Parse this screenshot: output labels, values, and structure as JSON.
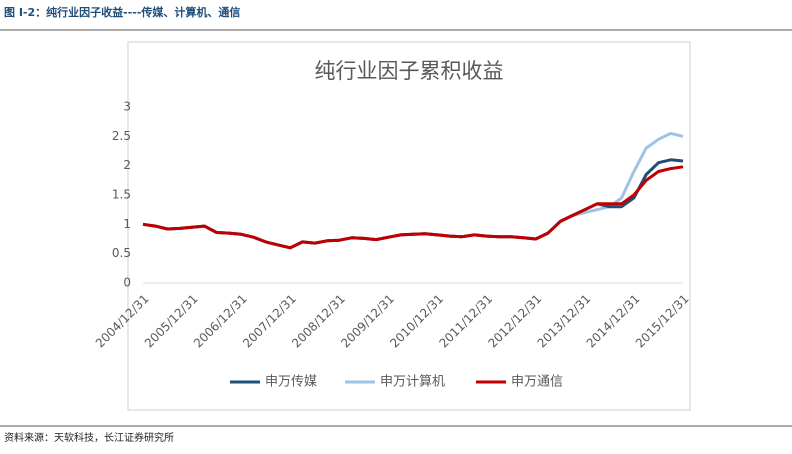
{
  "header": {
    "title": "图 I-2：纯行业因子收益----传媒、计算机、通信"
  },
  "chart_data": {
    "type": "line",
    "title": "纯行业因子累积收益",
    "categories": [
      "2004/12/31",
      null,
      null,
      null,
      "2005/12/31",
      null,
      null,
      null,
      "2006/12/31",
      null,
      null,
      null,
      "2007/12/31",
      null,
      null,
      null,
      "2008/12/31",
      null,
      null,
      null,
      "2009/12/31",
      null,
      null,
      null,
      "2010/12/31",
      null,
      null,
      null,
      "2011/12/31",
      null,
      null,
      null,
      "2012/12/31",
      null,
      null,
      null,
      "2013/12/31",
      null,
      null,
      null,
      "2014/12/31",
      null,
      null,
      null,
      "2015/12/31"
    ],
    "series": [
      {
        "name": "申万计算机",
        "color": "#9dc3e6",
        "values": [
          1.0,
          0.97,
          0.92,
          0.93,
          0.95,
          0.97,
          0.86,
          0.85,
          0.83,
          0.78,
          0.7,
          0.65,
          0.6,
          0.7,
          0.68,
          0.72,
          0.73,
          0.77,
          0.76,
          0.74,
          0.78,
          0.82,
          0.83,
          0.84,
          0.82,
          0.8,
          0.79,
          0.82,
          0.8,
          0.79,
          0.79,
          0.77,
          0.75,
          0.85,
          1.05,
          1.15,
          1.2,
          1.25,
          1.3,
          1.45,
          1.9,
          2.3,
          2.45,
          2.55,
          2.5
        ]
      },
      {
        "name": "申万传媒",
        "color": "#1f4e79",
        "values": [
          1.0,
          0.97,
          0.92,
          0.93,
          0.95,
          0.97,
          0.86,
          0.85,
          0.83,
          0.78,
          0.7,
          0.65,
          0.6,
          0.7,
          0.68,
          0.72,
          0.73,
          0.77,
          0.76,
          0.74,
          0.78,
          0.82,
          0.83,
          0.84,
          0.82,
          0.8,
          0.79,
          0.82,
          0.8,
          0.79,
          0.79,
          0.77,
          0.75,
          0.85,
          1.05,
          1.15,
          1.25,
          1.35,
          1.3,
          1.3,
          1.45,
          1.85,
          2.05,
          2.1,
          2.08
        ]
      },
      {
        "name": "申万通信",
        "color": "#c00000",
        "values": [
          1.0,
          0.97,
          0.92,
          0.93,
          0.95,
          0.97,
          0.86,
          0.85,
          0.83,
          0.78,
          0.7,
          0.65,
          0.6,
          0.7,
          0.68,
          0.72,
          0.73,
          0.77,
          0.76,
          0.74,
          0.78,
          0.82,
          0.83,
          0.84,
          0.82,
          0.8,
          0.79,
          0.82,
          0.8,
          0.79,
          0.79,
          0.77,
          0.75,
          0.85,
          1.05,
          1.15,
          1.25,
          1.35,
          1.35,
          1.35,
          1.5,
          1.75,
          1.9,
          1.95,
          1.98
        ]
      }
    ],
    "ylim": [
      0,
      3
    ],
    "yticks": [
      0,
      0.5,
      1,
      1.5,
      2,
      2.5,
      3
    ]
  },
  "footer": {
    "source": "资料来源：天软科技，长江证券研究所"
  }
}
